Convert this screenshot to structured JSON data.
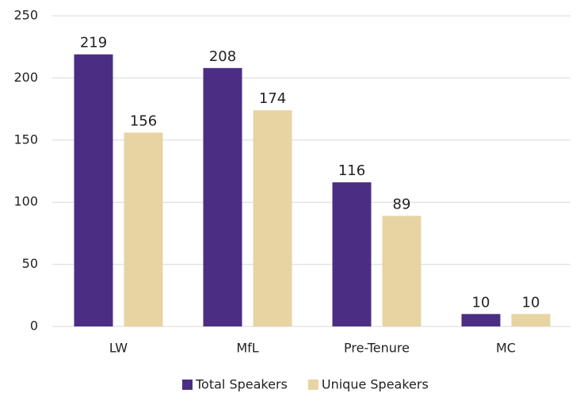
{
  "chart_data": {
    "type": "bar",
    "categories": [
      "LW",
      "MfL",
      "Pre-Tenure",
      "MC"
    ],
    "series": [
      {
        "name": "Total Speakers",
        "color": "#4b2e83",
        "values": [
          219,
          208,
          116,
          10
        ]
      },
      {
        "name": "Unique Speakers",
        "color": "#e8d3a2",
        "values": [
          156,
          174,
          89,
          10
        ]
      }
    ],
    "ylim": [
      0,
      250
    ],
    "yticks": [
      0,
      50,
      100,
      150,
      200,
      250
    ],
    "grid": true,
    "legend": "bottom"
  }
}
